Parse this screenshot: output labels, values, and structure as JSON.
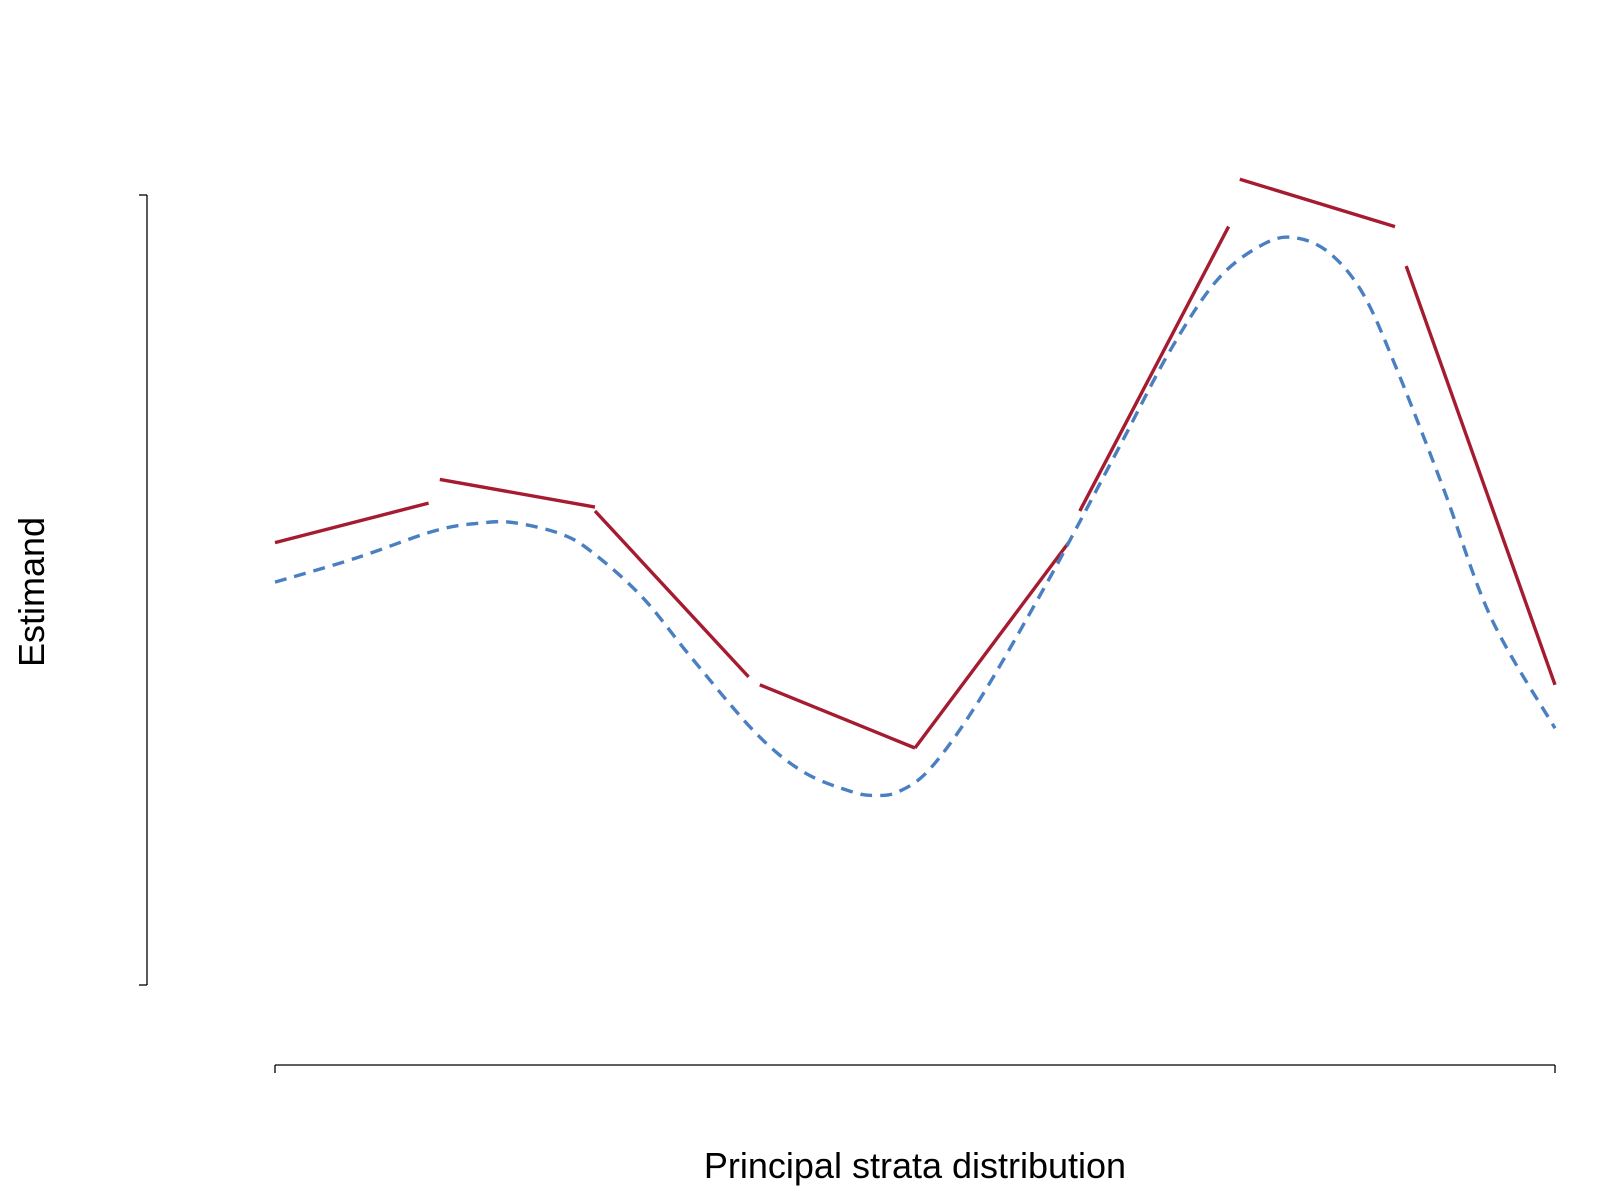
{
  "chart_data": {
    "type": "line",
    "xlabel": "Principal strata distribution",
    "ylabel": "Estimand",
    "xlim": [
      0,
      8
    ],
    "ylim": [
      0,
      10
    ],
    "grid": false,
    "legend": "none",
    "x_ticks": [
      0,
      8
    ],
    "y_ticks": [
      0,
      10
    ],
    "series": [
      {
        "key": "piecewise",
        "style": "solid-segments",
        "color": "#A51C30",
        "segments": [
          [
            [
              0.0,
              5.6
            ],
            [
              0.96,
              6.1
            ]
          ],
          [
            [
              1.03,
              6.4
            ],
            [
              2.0,
              6.05
            ]
          ],
          [
            [
              2.0,
              6.0
            ],
            [
              2.96,
              3.9
            ]
          ],
          [
            [
              3.03,
              3.8
            ],
            [
              4.0,
              3.0
            ]
          ],
          [
            [
              4.0,
              3.0
            ],
            [
              4.96,
              5.6
            ]
          ],
          [
            [
              5.03,
              6.0
            ],
            [
              5.96,
              9.6
            ]
          ],
          [
            [
              6.03,
              10.2
            ],
            [
              7.0,
              9.6
            ]
          ],
          [
            [
              7.07,
              9.1
            ],
            [
              8.0,
              3.8
            ]
          ]
        ]
      },
      {
        "key": "smooth",
        "style": "dashed",
        "color": "#4A7FC1",
        "x": [
          0.0,
          0.5,
          1.0,
          1.3,
          1.5,
          1.8,
          2.0,
          2.3,
          2.6,
          3.0,
          3.3,
          3.6,
          3.75,
          3.9,
          4.1,
          4.4,
          4.8,
          5.0,
          5.3,
          5.6,
          5.9,
          6.2,
          6.4,
          6.6,
          6.8,
          7.0,
          7.3,
          7.6,
          8.0
        ],
        "y": [
          5.1,
          5.4,
          5.75,
          5.85,
          5.85,
          5.7,
          5.45,
          4.9,
          4.15,
          3.2,
          2.7,
          2.45,
          2.4,
          2.45,
          2.75,
          3.6,
          5.0,
          5.75,
          6.9,
          8.05,
          8.95,
          9.4,
          9.45,
          9.25,
          8.75,
          7.85,
          6.3,
          4.65,
          3.25
        ]
      }
    ]
  }
}
